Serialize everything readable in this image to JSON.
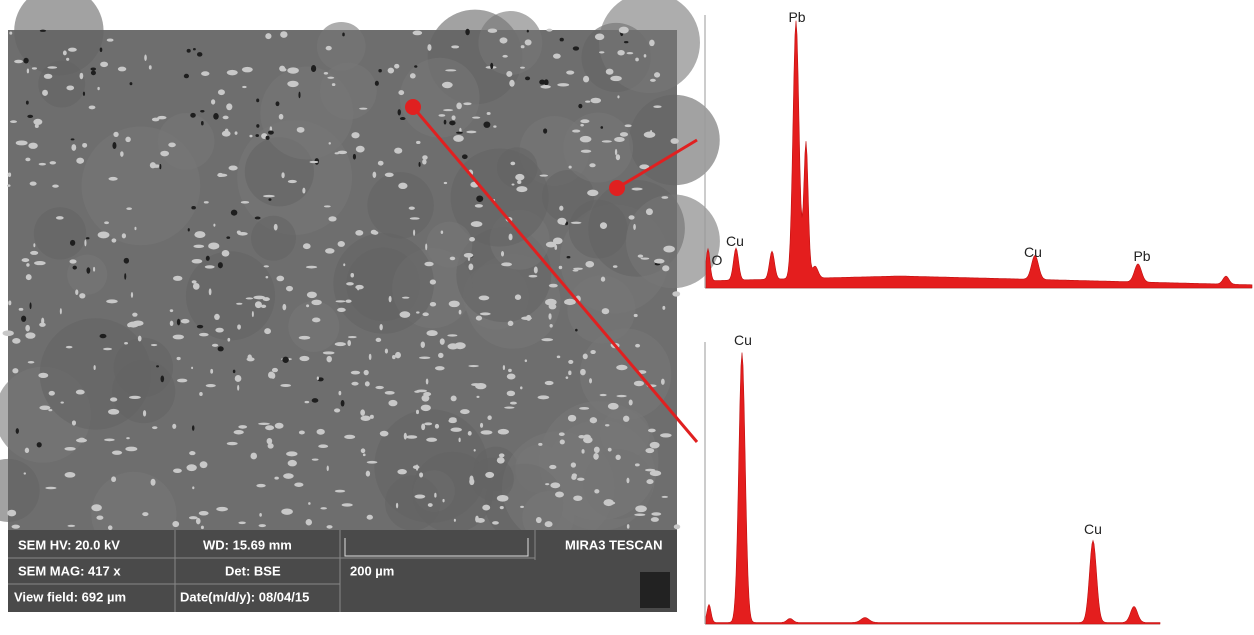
{
  "sem_info": {
    "hv": "SEM HV: 20.0 kV",
    "wd": "WD: 15.69 mm",
    "brand": "MIRA3 TESCAN",
    "mag": "SEM MAG: 417 x",
    "det": "Det: BSE",
    "scale": "200 µm",
    "view_field": "View field: 692 µm",
    "date": "Date(m/d/y): 08/04/15"
  },
  "spectrum_top": {
    "peak_labels": [
      "Pb",
      "O",
      "Cu",
      "Cu",
      "Pb"
    ]
  },
  "spectrum_bottom": {
    "peak_labels": [
      "Cu",
      "Cu"
    ]
  }
}
